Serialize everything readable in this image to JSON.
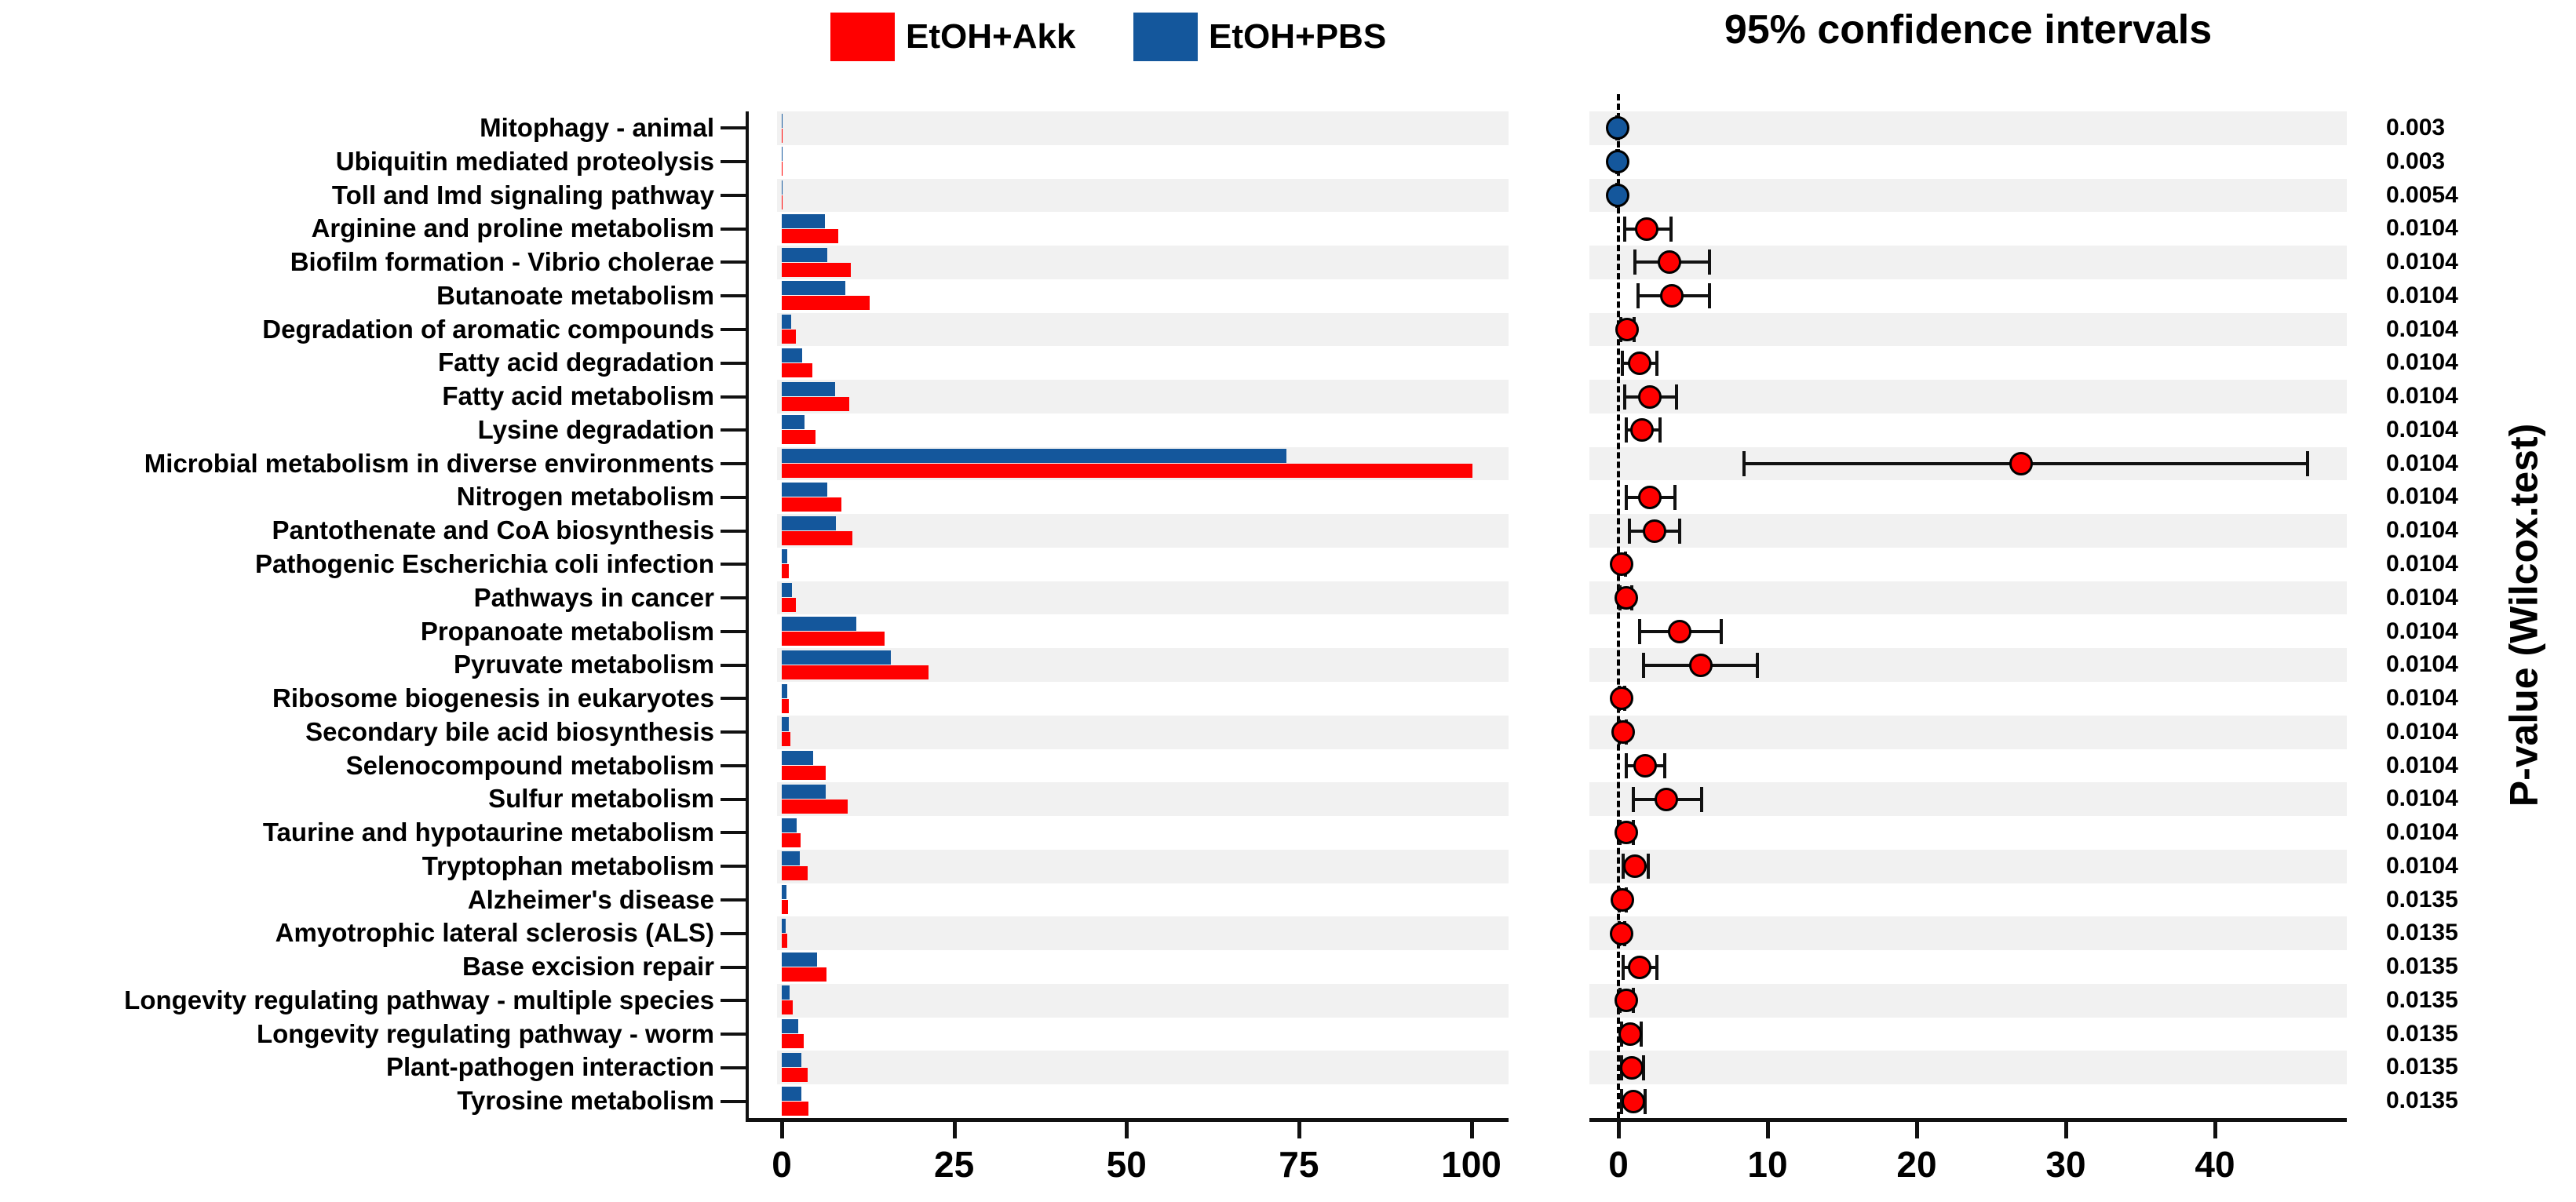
{
  "legend": {
    "akk_label": "EtOH+Akk",
    "pbs_label": "EtOH+PBS",
    "akk_color": "#FF0000",
    "pbs_color": "#14579C"
  },
  "confidence_title": "95% confidence intervals",
  "chart_data": {
    "type": "bar",
    "subtype": "extended-error-bar (STAMP-style): horizontal grouped bars of mean proportion (%) plus difference-in-mean-proportions dot with 95% CI and Wilcoxon p-value per pathway",
    "categories": [
      "Mitophagy - animal",
      "Ubiquitin mediated proteolysis",
      "Toll and Imd signaling pathway",
      "Arginine and proline metabolism",
      "Biofilm formation - Vibrio cholerae",
      "Butanoate metabolism",
      "Degradation of aromatic compounds",
      "Fatty acid degradation",
      "Fatty acid metabolism",
      "Lysine degradation",
      "Microbial metabolism in diverse environments",
      "Nitrogen metabolism",
      "Pantothenate and CoA biosynthesis",
      "Pathogenic Escherichia coli infection",
      "Pathways in cancer",
      "Propanoate metabolism",
      "Pyruvate metabolism",
      "Ribosome biogenesis in eukaryotes",
      "Secondary bile acid biosynthesis",
      "Selenocompound metabolism",
      "Sulfur metabolism",
      "Taurine and hypotaurine metabolism",
      "Tryptophan metabolism",
      "Alzheimer's disease",
      "Amyotrophic lateral sclerosis (ALS)",
      "Base excision repair",
      "Longevity regulating pathway - multiple species",
      "Longevity regulating pathway - worm",
      "Plant-pathogen interaction",
      "Tyrosine metabolism"
    ],
    "series": [
      {
        "name": "EtOH+Akk",
        "color": "#FF0000",
        "values": [
          0.05,
          0.04,
          0.06,
          8.2,
          10.0,
          12.8,
          2.0,
          4.4,
          9.8,
          4.9,
          100.2,
          8.7,
          10.3,
          1.05,
          2.0,
          14.9,
          21.3,
          1.0,
          1.3,
          6.4,
          9.6,
          2.7,
          3.7,
          0.95,
          0.8,
          6.5,
          1.65,
          3.2,
          3.7,
          3.9
        ]
      },
      {
        "name": "EtOH+PBS",
        "color": "#14579C",
        "values": [
          0.1,
          0.08,
          0.12,
          6.3,
          6.6,
          9.2,
          1.4,
          3.0,
          7.7,
          3.3,
          73.2,
          6.6,
          7.9,
          0.85,
          1.5,
          10.8,
          15.8,
          0.8,
          1.0,
          4.6,
          6.4,
          2.2,
          2.6,
          0.7,
          0.6,
          5.1,
          1.1,
          2.4,
          2.8,
          2.9
        ]
      }
    ],
    "bar_axis": {
      "ticks": [
        0,
        25,
        50,
        75,
        100
      ],
      "lim": [
        -0.7,
        106
      ]
    },
    "interval_plot": {
      "title": "95% confidence intervals",
      "ticks": [
        0,
        10,
        20,
        30,
        40
      ],
      "lim": [
        -2,
        48.8
      ],
      "zero_line": true,
      "points": [
        {
          "diff": -0.05,
          "lo": -0.1,
          "hi": -0.01,
          "color": "#14579C"
        },
        {
          "diff": -0.04,
          "lo": -0.09,
          "hi": -0.01,
          "color": "#14579C"
        },
        {
          "diff": -0.06,
          "lo": -0.12,
          "hi": -0.02,
          "color": "#14579C"
        },
        {
          "diff": 1.9,
          "lo": 0.4,
          "hi": 3.5,
          "color": "#FF0000"
        },
        {
          "diff": 3.4,
          "lo": 1.1,
          "hi": 6.1,
          "color": "#FF0000"
        },
        {
          "diff": 3.6,
          "lo": 1.3,
          "hi": 6.1,
          "color": "#FF0000"
        },
        {
          "diff": 0.6,
          "lo": 0.15,
          "hi": 1.05,
          "color": "#FF0000"
        },
        {
          "diff": 1.4,
          "lo": 0.25,
          "hi": 2.6,
          "color": "#FF0000"
        },
        {
          "diff": 2.1,
          "lo": 0.4,
          "hi": 3.9,
          "color": "#FF0000"
        },
        {
          "diff": 1.6,
          "lo": 0.5,
          "hi": 2.8,
          "color": "#FF0000"
        },
        {
          "diff": 27.0,
          "lo": 8.4,
          "hi": 46.2,
          "color": "#FF0000"
        },
        {
          "diff": 2.1,
          "lo": 0.55,
          "hi": 3.8,
          "color": "#FF0000"
        },
        {
          "diff": 2.4,
          "lo": 0.75,
          "hi": 4.1,
          "color": "#FF0000"
        },
        {
          "diff": 0.2,
          "lo": 0.02,
          "hi": 0.45,
          "color": "#FF0000"
        },
        {
          "diff": 0.5,
          "lo": 0.1,
          "hi": 0.9,
          "color": "#FF0000"
        },
        {
          "diff": 4.1,
          "lo": 1.4,
          "hi": 6.9,
          "color": "#FF0000"
        },
        {
          "diff": 5.5,
          "lo": 1.7,
          "hi": 9.3,
          "color": "#FF0000"
        },
        {
          "diff": 0.2,
          "lo": 0.03,
          "hi": 0.4,
          "color": "#FF0000"
        },
        {
          "diff": 0.3,
          "lo": 0.05,
          "hi": 0.55,
          "color": "#FF0000"
        },
        {
          "diff": 1.8,
          "lo": 0.55,
          "hi": 3.1,
          "color": "#FF0000"
        },
        {
          "diff": 3.2,
          "lo": 1.0,
          "hi": 5.6,
          "color": "#FF0000"
        },
        {
          "diff": 0.5,
          "lo": 0.1,
          "hi": 1.0,
          "color": "#FF0000"
        },
        {
          "diff": 1.1,
          "lo": 0.3,
          "hi": 2.0,
          "color": "#FF0000"
        },
        {
          "diff": 0.25,
          "lo": 0.05,
          "hi": 0.5,
          "color": "#FF0000"
        },
        {
          "diff": 0.2,
          "lo": 0.03,
          "hi": 0.4,
          "color": "#FF0000"
        },
        {
          "diff": 1.4,
          "lo": 0.3,
          "hi": 2.6,
          "color": "#FF0000"
        },
        {
          "diff": 0.55,
          "lo": 0.1,
          "hi": 1.0,
          "color": "#FF0000"
        },
        {
          "diff": 0.8,
          "lo": 0.2,
          "hi": 1.5,
          "color": "#FF0000"
        },
        {
          "diff": 0.9,
          "lo": 0.2,
          "hi": 1.7,
          "color": "#FF0000"
        },
        {
          "diff": 1.0,
          "lo": 0.2,
          "hi": 1.8,
          "color": "#FF0000"
        }
      ]
    },
    "p_values": [
      "0.003",
      "0.003",
      "0.0054",
      "0.0104",
      "0.0104",
      "0.0104",
      "0.0104",
      "0.0104",
      "0.0104",
      "0.0104",
      "0.0104",
      "0.0104",
      "0.0104",
      "0.0104",
      "0.0104",
      "0.0104",
      "0.0104",
      "0.0104",
      "0.0104",
      "0.0104",
      "0.0104",
      "0.0104",
      "0.0104",
      "0.0135",
      "0.0135",
      "0.0135",
      "0.0135",
      "0.0135",
      "0.0135",
      "0.0135"
    ],
    "p_label": "P-value (Wilcox.test)",
    "stripe_color": "#F1F1F1"
  }
}
